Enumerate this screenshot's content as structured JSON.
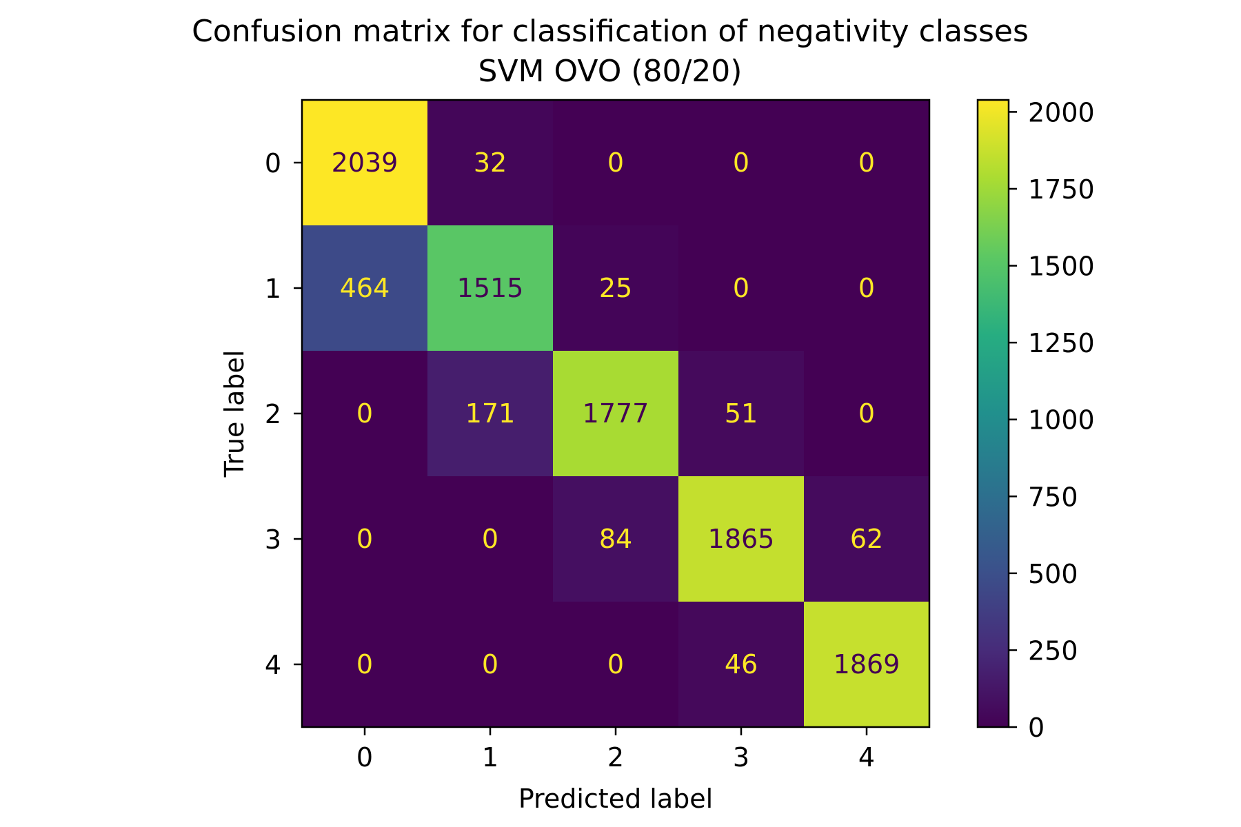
{
  "chart_data": {
    "type": "heatmap",
    "title": "Confusion matrix for classification of negativity classes",
    "subtitle": "SVM OVO (80/20)",
    "xlabel": "Predicted label",
    "ylabel": "True label",
    "x_categories": [
      "0",
      "1",
      "2",
      "3",
      "4"
    ],
    "y_categories": [
      "0",
      "1",
      "2",
      "3",
      "4"
    ],
    "matrix": [
      [
        2039,
        32,
        0,
        0,
        0
      ],
      [
        464,
        1515,
        25,
        0,
        0
      ],
      [
        0,
        171,
        1777,
        51,
        0
      ],
      [
        0,
        0,
        84,
        1865,
        62
      ],
      [
        0,
        0,
        0,
        46,
        1869
      ]
    ],
    "colormap": "viridis",
    "colorbar": {
      "range": [
        0,
        2039
      ],
      "ticks": [
        0,
        250,
        500,
        750,
        1000,
        1250,
        1500,
        1750,
        2000
      ]
    },
    "grid": false
  }
}
